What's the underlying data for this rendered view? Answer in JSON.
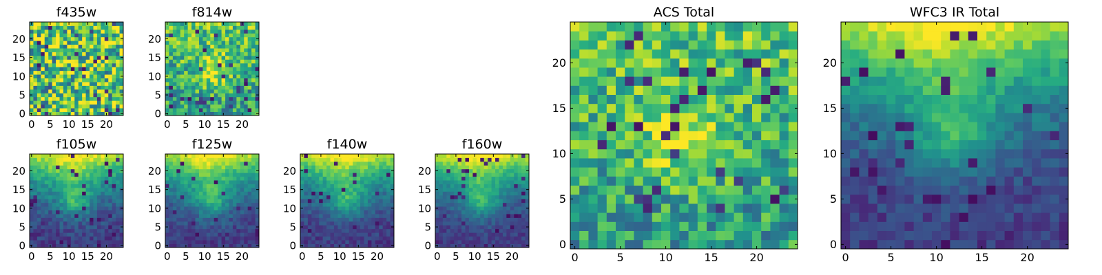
{
  "chart_data": [
    {
      "type": "heatmap",
      "title": "f435w",
      "xticks": [
        0,
        5,
        10,
        15,
        20
      ],
      "yticks": [
        0,
        5,
        10,
        15,
        20
      ],
      "xlim": [
        -0.5,
        24.5
      ],
      "ylim": [
        -0.5,
        24.5
      ],
      "grid_size": 25,
      "colormap": "viridis",
      "pattern": "noise",
      "contrast": 0.9
    },
    {
      "type": "heatmap",
      "title": "f814w",
      "xticks": [
        0,
        5,
        10,
        15,
        20
      ],
      "yticks": [
        0,
        5,
        10,
        15,
        20
      ],
      "xlim": [
        -0.5,
        24.5
      ],
      "ylim": [
        -0.5,
        24.5
      ],
      "grid_size": 25,
      "colormap": "viridis",
      "pattern": "blob",
      "contrast": 0.75
    },
    {
      "type": "heatmap",
      "title": "f105w",
      "xticks": [
        0,
        5,
        10,
        15,
        20
      ],
      "yticks": [
        0,
        5,
        10,
        15,
        20
      ],
      "xlim": [
        -0.5,
        24.5
      ],
      "ylim": [
        -0.5,
        24.5
      ],
      "grid_size": 25,
      "colormap": "viridis",
      "pattern": "gradient",
      "contrast": 0.4
    },
    {
      "type": "heatmap",
      "title": "f125w",
      "xticks": [
        0,
        5,
        10,
        15,
        20
      ],
      "yticks": [
        0,
        5,
        10,
        15,
        20
      ],
      "xlim": [
        -0.5,
        24.5
      ],
      "ylim": [
        -0.5,
        24.5
      ],
      "grid_size": 25,
      "colormap": "viridis",
      "pattern": "gradient",
      "contrast": 0.35
    },
    {
      "type": "heatmap",
      "title": "f140w",
      "xticks": [
        0,
        5,
        10,
        15,
        20
      ],
      "yticks": [
        0,
        5,
        10,
        15,
        20
      ],
      "xlim": [
        -0.5,
        24.5
      ],
      "ylim": [
        -0.5,
        24.5
      ],
      "grid_size": 25,
      "colormap": "viridis",
      "pattern": "gradient",
      "contrast": 0.35
    },
    {
      "type": "heatmap",
      "title": "f160w",
      "xticks": [
        0,
        5,
        10,
        15,
        20
      ],
      "yticks": [
        0,
        5,
        10,
        15,
        20
      ],
      "xlim": [
        -0.5,
        24.5
      ],
      "ylim": [
        -0.5,
        24.5
      ],
      "grid_size": 25,
      "colormap": "viridis",
      "pattern": "gradient",
      "contrast": 0.3
    },
    {
      "type": "heatmap",
      "title": "ACS Total",
      "xticks": [
        0,
        5,
        10,
        15,
        20
      ],
      "yticks": [
        0,
        5,
        10,
        15,
        20
      ],
      "xlim": [
        -0.5,
        24.5
      ],
      "ylim": [
        -0.5,
        24.5
      ],
      "grid_size": 25,
      "colormap": "viridis",
      "pattern": "blob",
      "contrast": 0.7
    },
    {
      "type": "heatmap",
      "title": "WFC3 IR Total",
      "xticks": [
        0,
        5,
        10,
        15,
        20
      ],
      "yticks": [
        0,
        5,
        10,
        15,
        20
      ],
      "xlim": [
        -0.5,
        24.5
      ],
      "ylim": [
        -0.5,
        24.5
      ],
      "grid_size": 25,
      "colormap": "viridis",
      "pattern": "gradient",
      "contrast": 0.35
    }
  ]
}
